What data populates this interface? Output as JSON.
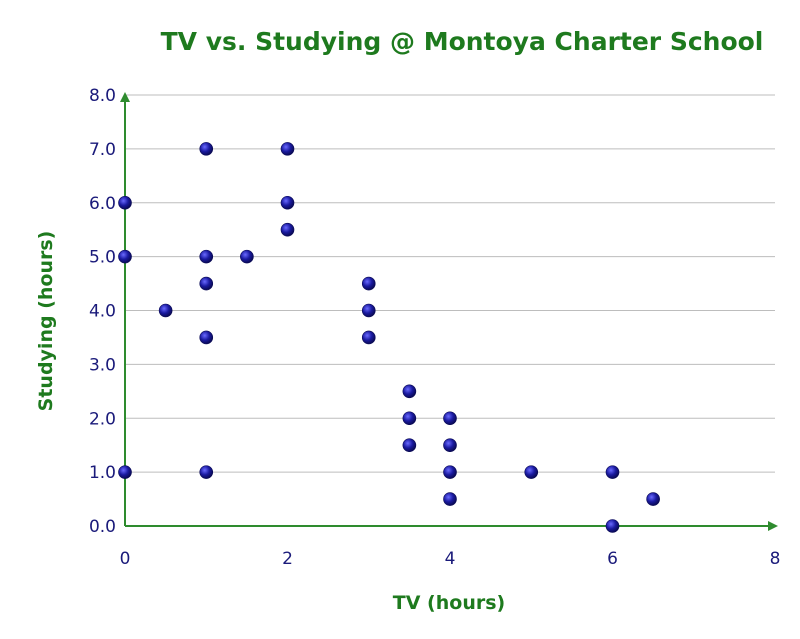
{
  "chart_data": {
    "type": "scatter",
    "title": "TV vs. Studying @ Montoya Charter School",
    "xlabel": "TV (hours)",
    "ylabel": "Studying (hours)",
    "xlim": [
      0,
      8
    ],
    "ylim": [
      0,
      8
    ],
    "x_ticks": [
      "0",
      "2",
      "4",
      "6",
      "8"
    ],
    "y_ticks": [
      "0.0",
      "1.0",
      "2.0",
      "3.0",
      "4.0",
      "5.0",
      "6.0",
      "7.0",
      "8.0"
    ],
    "grid": "horizontal",
    "legend": "none",
    "colors": {
      "title": "#1e7a1e",
      "axis_title": "#1e7a1e",
      "axis_line": "#2e8b2e",
      "tick_label": "#1a1a7a",
      "point": "#1a1aa0",
      "point_highlight": "#6a6aff",
      "point_edge": "#0a0a55"
    },
    "points": [
      {
        "x": 0,
        "y": 6
      },
      {
        "x": 0,
        "y": 5
      },
      {
        "x": 0,
        "y": 1
      },
      {
        "x": 0.5,
        "y": 4
      },
      {
        "x": 1,
        "y": 7
      },
      {
        "x": 1,
        "y": 5
      },
      {
        "x": 1,
        "y": 4.5
      },
      {
        "x": 1,
        "y": 3.5
      },
      {
        "x": 1,
        "y": 1
      },
      {
        "x": 1.5,
        "y": 5
      },
      {
        "x": 2,
        "y": 7
      },
      {
        "x": 2,
        "y": 6
      },
      {
        "x": 2,
        "y": 5.5
      },
      {
        "x": 3,
        "y": 4.5
      },
      {
        "x": 3,
        "y": 4
      },
      {
        "x": 3,
        "y": 3.5
      },
      {
        "x": 3.5,
        "y": 2.5
      },
      {
        "x": 3.5,
        "y": 2
      },
      {
        "x": 3.5,
        "y": 1.5
      },
      {
        "x": 4,
        "y": 2
      },
      {
        "x": 4,
        "y": 1.5
      },
      {
        "x": 4,
        "y": 1
      },
      {
        "x": 4,
        "y": 0.5
      },
      {
        "x": 5,
        "y": 1
      },
      {
        "x": 6,
        "y": 1
      },
      {
        "x": 6,
        "y": 0
      },
      {
        "x": 6.5,
        "y": 0.5
      }
    ]
  }
}
